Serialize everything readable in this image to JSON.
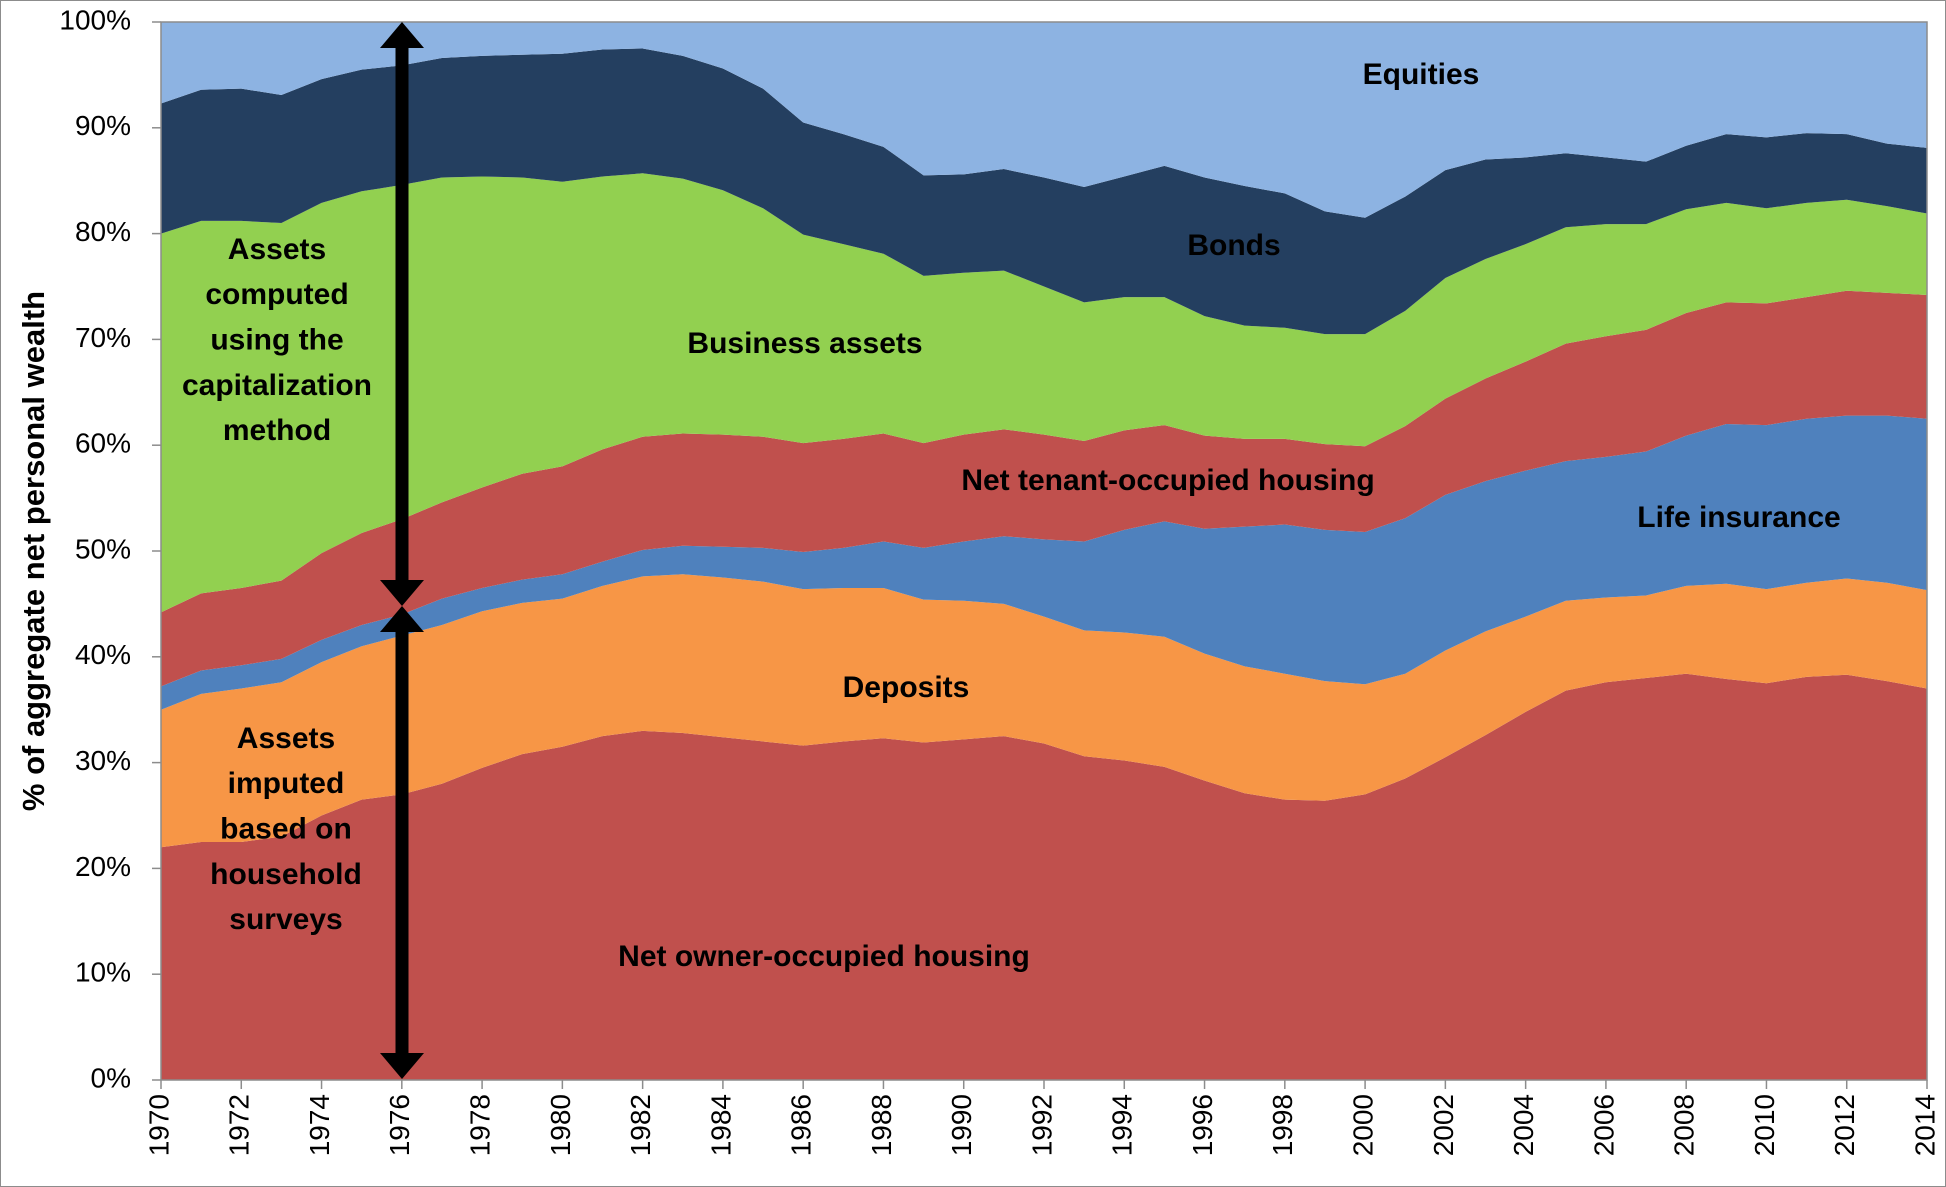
{
  "chart_data": {
    "type": "stacked_area",
    "y_label": "% of aggregate net personal wealth",
    "x": [
      1970,
      1971,
      1972,
      1973,
      1974,
      1975,
      1976,
      1977,
      1978,
      1979,
      1980,
      1981,
      1982,
      1983,
      1984,
      1985,
      1986,
      1987,
      1988,
      1989,
      1990,
      1991,
      1992,
      1993,
      1994,
      1995,
      1996,
      1997,
      1998,
      1999,
      2000,
      2001,
      2002,
      2003,
      2004,
      2005,
      2006,
      2007,
      2008,
      2009,
      2010,
      2011,
      2012,
      2013,
      2014
    ],
    "xlim": [
      1970,
      2014
    ],
    "xticks": [
      1970,
      1972,
      1974,
      1976,
      1978,
      1980,
      1982,
      1984,
      1986,
      1988,
      1990,
      1992,
      1994,
      1996,
      1998,
      2000,
      2002,
      2004,
      2006,
      2008,
      2010,
      2012,
      2014
    ],
    "ylim": [
      0,
      100
    ],
    "yticks": [
      {
        "value": 0,
        "label": "0%"
      },
      {
        "value": 10,
        "label": "10%"
      },
      {
        "value": 20,
        "label": "20%"
      },
      {
        "value": 30,
        "label": "30%"
      },
      {
        "value": 40,
        "label": "40%"
      },
      {
        "value": 50,
        "label": "50%"
      },
      {
        "value": 60,
        "label": "60%"
      },
      {
        "value": 70,
        "label": "70%"
      },
      {
        "value": 80,
        "label": "80%"
      },
      {
        "value": 90,
        "label": "90%"
      },
      {
        "value": 100,
        "label": "100%"
      }
    ],
    "grid": false,
    "series": [
      {
        "name": "Net owner-occupied housing",
        "color": "#c0504d",
        "values": [
          22,
          22.5,
          22.5,
          23,
          25,
          26.5,
          27,
          28,
          29.5,
          30.8,
          31.5,
          32.5,
          33,
          32.8,
          32.4,
          32,
          31.6,
          32,
          32.3,
          31.9,
          32.2,
          32.5,
          31.8,
          30.6,
          30.2,
          29.6,
          28.3,
          27.1,
          26.5,
          26.4,
          27,
          28.5,
          30.5,
          32.6,
          34.8,
          36.8,
          37.6,
          38,
          38.4,
          37.9,
          37.5,
          38.1,
          38.3,
          37.7,
          37
        ]
      },
      {
        "name": "Deposits",
        "color": "#f79646",
        "values": [
          13,
          14,
          14.5,
          14.6,
          14.5,
          14.5,
          15,
          15,
          14.8,
          14.3,
          14,
          14.2,
          14.6,
          15,
          15.1,
          15.1,
          14.8,
          14.5,
          14.2,
          13.5,
          13.1,
          12.5,
          12,
          11.9,
          12.1,
          12.3,
          12,
          12,
          11.9,
          11.3,
          10.4,
          9.9,
          10.1,
          9.8,
          9,
          8.5,
          8,
          7.8,
          8.3,
          9,
          8.9,
          8.9,
          9.1,
          9.3,
          9.3
        ]
      },
      {
        "name": "Life insurance",
        "color": "#4f81bd",
        "values": [
          2.2,
          2.2,
          2.2,
          2.2,
          2.1,
          2,
          2,
          2.5,
          2.2,
          2.2,
          2.3,
          2.3,
          2.5,
          2.7,
          2.9,
          3.2,
          3.5,
          3.8,
          4.4,
          4.9,
          5.6,
          6.4,
          7.3,
          8.4,
          9.7,
          10.9,
          11.8,
          13.2,
          14.1,
          14.3,
          14.4,
          14.7,
          14.7,
          14.2,
          13.8,
          13.2,
          13.3,
          13.6,
          14.2,
          15.1,
          15.5,
          15.5,
          15.4,
          15.8,
          16.2
        ]
      },
      {
        "name": "Net tenant-occupied housing",
        "color": "#c0504d",
        "values": [
          7,
          7.3,
          7.3,
          7.4,
          8.2,
          8.7,
          9,
          9.1,
          9.5,
          10,
          10.2,
          10.6,
          10.7,
          10.6,
          10.6,
          10.5,
          10.3,
          10.3,
          10.2,
          9.9,
          10.1,
          10.1,
          9.9,
          9.5,
          9.4,
          9.1,
          8.8,
          8.3,
          8.1,
          8.1,
          8.1,
          8.7,
          9.1,
          9.7,
          10.3,
          11.1,
          11.4,
          11.5,
          11.6,
          11.5,
          11.5,
          11.5,
          11.8,
          11.6,
          11.7
        ]
      },
      {
        "name": "Business assets",
        "color": "#92d050",
        "values": [
          35.8,
          35.2,
          34.7,
          33.8,
          33.1,
          32.3,
          31.6,
          30.7,
          29.4,
          28,
          26.9,
          25.8,
          24.9,
          24.1,
          23.1,
          21.6,
          19.7,
          18.4,
          17,
          15.8,
          15.3,
          15,
          14,
          13.1,
          12.6,
          12.1,
          11.3,
          10.7,
          10.5,
          10.4,
          10.6,
          10.9,
          11.4,
          11.3,
          11.1,
          11,
          10.6,
          10,
          9.8,
          9.4,
          9,
          8.9,
          8.6,
          8.2,
          7.7
        ]
      },
      {
        "name": "Bonds",
        "color": "#243f60",
        "values": [
          12.3,
          12.4,
          12.5,
          12.1,
          11.7,
          11.5,
          11.3,
          11.3,
          11.4,
          11.6,
          12.1,
          12,
          11.8,
          11.6,
          11.5,
          11.3,
          10.6,
          10.4,
          10.1,
          9.5,
          9.3,
          9.6,
          10.3,
          10.9,
          11.4,
          12.4,
          13.1,
          13.2,
          12.7,
          11.6,
          11,
          10.8,
          10.2,
          9.4,
          8.2,
          7,
          6.3,
          5.9,
          6,
          6.5,
          6.7,
          6.6,
          6.2,
          5.9,
          6.2
        ]
      },
      {
        "name": "Equities",
        "color": "#8db3e2",
        "values": [
          7.7,
          6.4,
          6.3,
          6.9,
          5.4,
          4.5,
          4.1,
          3.4,
          3.2,
          3.1,
          3,
          2.6,
          2.5,
          3.2,
          4.4,
          6.3,
          9.5,
          10.6,
          11.8,
          14.5,
          14.4,
          13.9,
          14.7,
          15.6,
          14.6,
          13.6,
          14.7,
          15.5,
          16.2,
          17.9,
          18.5,
          16.5,
          14,
          13,
          12.8,
          12.4,
          12.8,
          13.2,
          11.7,
          10.6,
          10.9,
          10.5,
          10.6,
          11.5,
          11.9
        ]
      }
    ],
    "annotations": [
      {
        "lines": [
          "Assets",
          "computed",
          "using the",
          "capitalization",
          "method"
        ]
      },
      {
        "lines": [
          "Assets",
          "imputed",
          "based on",
          "household",
          "surveys"
        ]
      }
    ]
  }
}
